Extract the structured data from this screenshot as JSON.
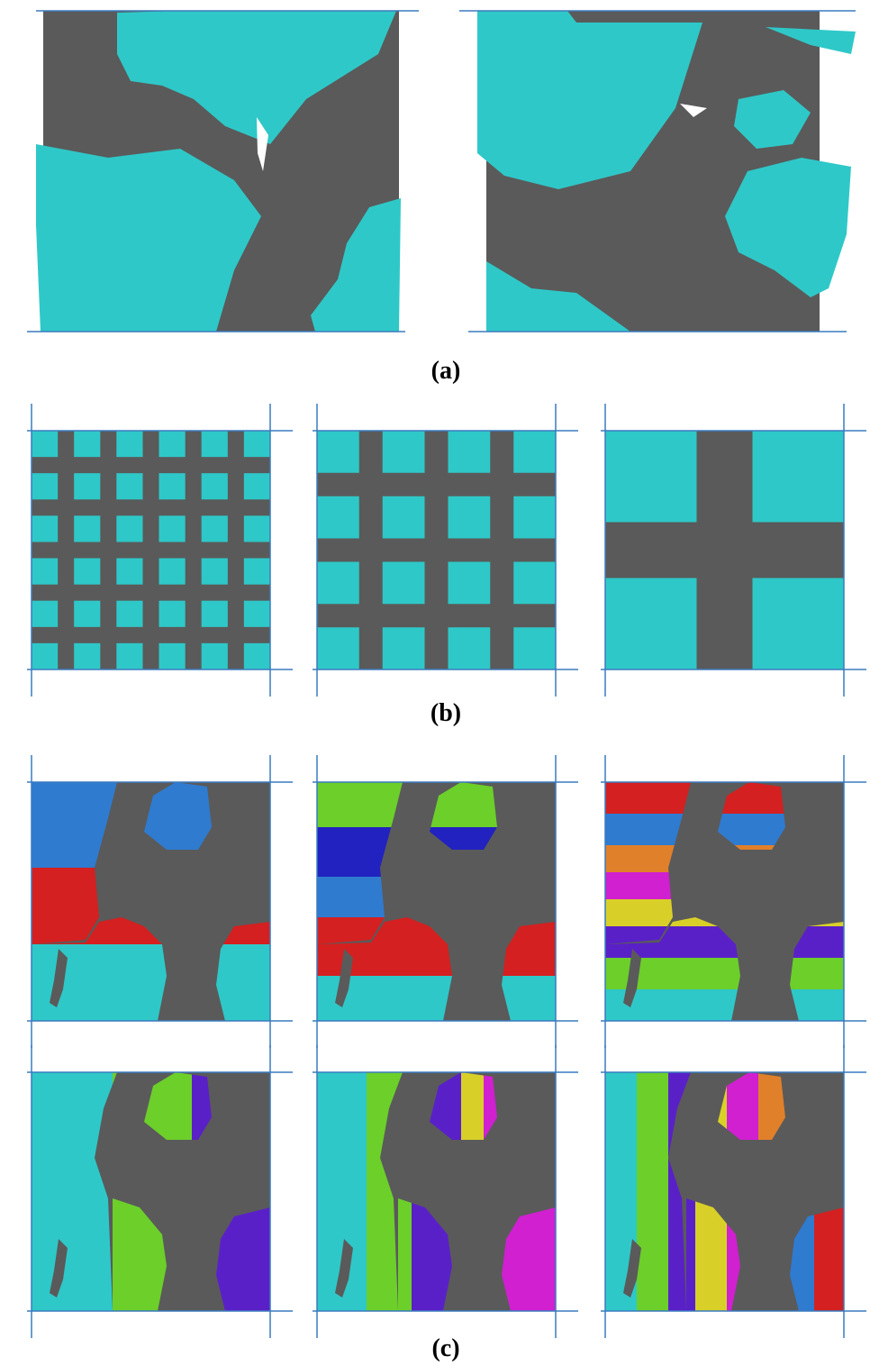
{
  "figure": {
    "labels": [
      "(a)",
      "(b)",
      "(c)"
    ]
  }
}
